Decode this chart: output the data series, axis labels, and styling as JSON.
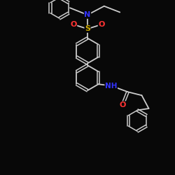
{
  "background_color": "#080808",
  "bond_color": "#cccccc",
  "atom_colors": {
    "N": "#3333ff",
    "O": "#ff3333",
    "S": "#ccaa00",
    "C": "#cccccc",
    "H": "#cccccc"
  },
  "figsize": [
    2.5,
    2.5
  ],
  "dpi": 100,
  "xlim": [
    0,
    10
  ],
  "ylim": [
    0,
    10
  ]
}
